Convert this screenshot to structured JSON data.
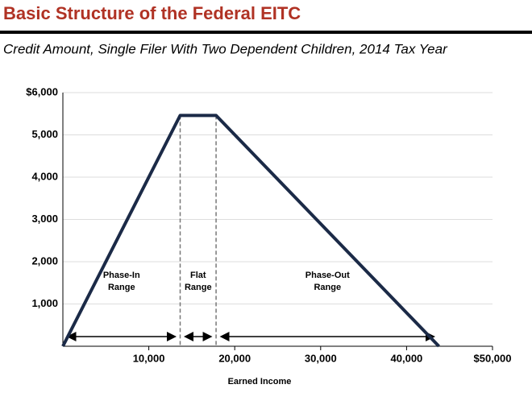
{
  "chart_data": {
    "type": "line",
    "title": "Basic Structure of the Federal EITC",
    "subtitle": "Credit Amount, Single Filer With Two Dependent Children, 2014 Tax Year",
    "x_label": "Earned Income",
    "x": [
      0,
      13650,
      17830,
      43760
    ],
    "series": [
      {
        "name": "Credit Amount",
        "color": "#1b2a47",
        "values": [
          0,
          5460,
          5460,
          0
        ]
      }
    ],
    "xlim": [
      0,
      50000
    ],
    "xticks": [
      {
        "value": 10000,
        "label": "10,000"
      },
      {
        "value": 20000,
        "label": "20,000"
      },
      {
        "value": 30000,
        "label": "30,000"
      },
      {
        "value": 40000,
        "label": "40,000"
      },
      {
        "value": 50000,
        "label": "$50,000"
      }
    ],
    "ylim": [
      0,
      6000
    ],
    "yticks": [
      {
        "value": 1000,
        "label": "1,000"
      },
      {
        "value": 2000,
        "label": "2,000"
      },
      {
        "value": 3000,
        "label": "3,000"
      },
      {
        "value": 4000,
        "label": "4,000"
      },
      {
        "value": 5000,
        "label": "5,000"
      },
      {
        "value": 6000,
        "label": "$6,000"
      }
    ],
    "grid": true,
    "annotations": [
      [
        "Phase-In",
        "Range"
      ],
      [
        "Flat",
        "Range"
      ],
      [
        "Phase-Out",
        "Range"
      ]
    ]
  }
}
